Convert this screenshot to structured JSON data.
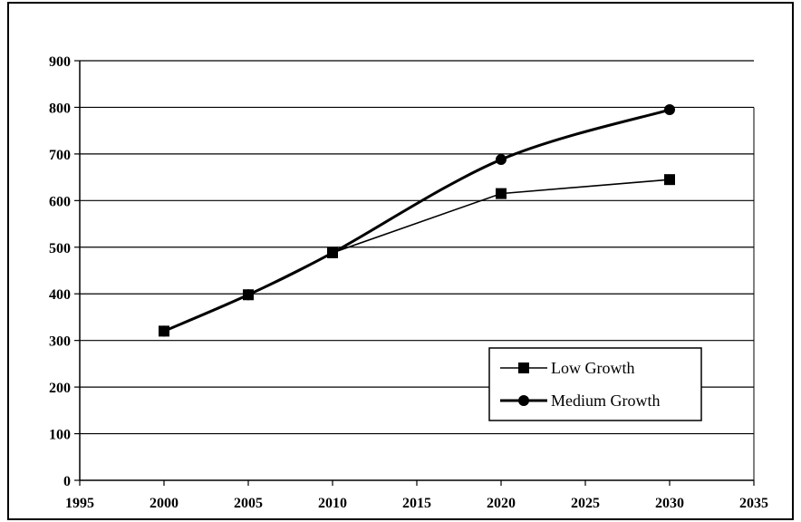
{
  "chart_data": {
    "type": "line",
    "title": "",
    "xlabel": "",
    "ylabel": "",
    "xlim": [
      1995,
      2035
    ],
    "ylim": [
      0,
      900
    ],
    "x_ticks": [
      "1995",
      "2000",
      "2005",
      "2010",
      "2015",
      "2020",
      "2025",
      "2030",
      "2035"
    ],
    "y_ticks": [
      "0",
      "100",
      "200",
      "300",
      "400",
      "500",
      "600",
      "700",
      "800",
      "900"
    ],
    "grid": "horizontal",
    "legend_position": "bottom-right",
    "series": [
      {
        "name": "Low Growth",
        "marker": "square",
        "color": "#000000",
        "x": [
          2000,
          2005,
          2010,
          2020,
          2030
        ],
        "y": [
          320,
          398,
          488,
          615,
          645
        ]
      },
      {
        "name": "Medium Growth",
        "marker": "circle",
        "color": "#000000",
        "x": [
          2000,
          2005,
          2010,
          2020,
          2030
        ],
        "y": [
          320,
          398,
          488,
          688,
          795
        ]
      }
    ]
  }
}
